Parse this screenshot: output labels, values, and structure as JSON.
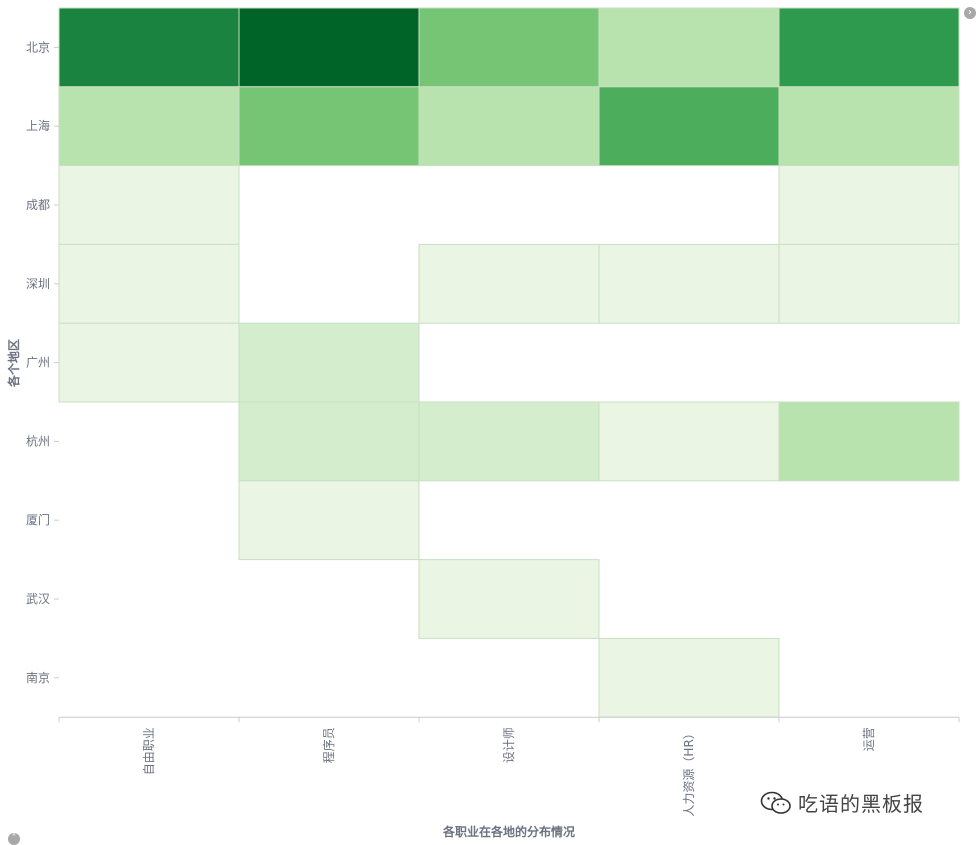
{
  "chart_data": {
    "type": "heatmap",
    "x_categories": [
      "自由职业",
      "程序员",
      "设计师",
      "人力资源（HR）",
      "运营"
    ],
    "y_categories": [
      "北京",
      "上海",
      "成都",
      "深圳",
      "广州",
      "杭州",
      "厦门",
      "武汉",
      "南京"
    ],
    "values": [
      [
        8,
        10,
        5,
        3,
        7
      ],
      [
        3,
        5,
        3,
        6,
        3
      ],
      [
        1,
        0,
        0,
        0,
        1
      ],
      [
        1,
        0,
        1,
        1,
        1
      ],
      [
        1,
        2,
        0,
        0,
        0
      ],
      [
        0,
        2,
        2,
        1,
        3
      ],
      [
        0,
        1,
        0,
        0,
        0
      ],
      [
        0,
        0,
        1,
        0,
        0
      ],
      [
        0,
        0,
        0,
        1,
        0
      ]
    ],
    "xlabel": "各职业在各地的分布情况",
    "ylabel": "各个地区",
    "color_scale": [
      "#eaf5e4",
      "#d3edcd",
      "#b8e2ae",
      "#98d493",
      "#75c574",
      "#4cae5d",
      "#2d9a4d",
      "#1a833f",
      "#0a7232",
      "#006428"
    ]
  },
  "watermark": {
    "text": "吃语的黑板报",
    "icon": "wechat-icon"
  },
  "controls": {
    "top_right": "chevron-right-icon",
    "bottom_left": "chevron-up-icon"
  }
}
